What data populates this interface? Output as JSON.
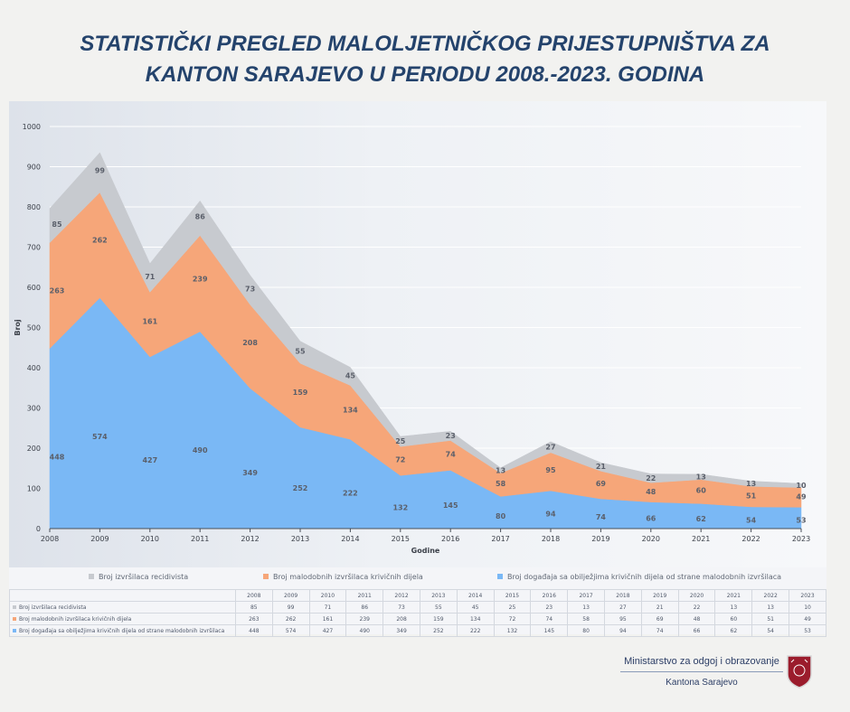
{
  "title_line1": "STATISTIČKI PREGLED MALOLJETNIČKOG PRIJESTUPNIŠTVA ZA",
  "title_line2": "KANTON SARAJEVO U PERIODU 2008.-2023. GODINA",
  "chart_data": {
    "type": "area",
    "stacked": true,
    "xlabel": "Godine",
    "ylabel": "Broj",
    "ylim": [
      0,
      1000
    ],
    "yticks": [
      0,
      100,
      200,
      300,
      400,
      500,
      600,
      700,
      800,
      900,
      1000
    ],
    "x": [
      "2008",
      "2009",
      "2010",
      "2011",
      "2012",
      "2013",
      "2014",
      "2015",
      "2016",
      "2017",
      "2018",
      "2019",
      "2020",
      "2021",
      "2022",
      "2023"
    ],
    "series": [
      {
        "name": "Broj događaja sa obilježjima krivičnih dijela od strane malodobnih izvršilaca",
        "color": "#7ab8f5",
        "values": [
          448,
          574,
          427,
          490,
          349,
          252,
          222,
          132,
          145,
          80,
          94,
          74,
          66,
          62,
          54,
          53
        ]
      },
      {
        "name": "Broj malodobnih izvršilaca krivičnih dijela",
        "color": "#f6a679",
        "values": [
          263,
          262,
          161,
          239,
          208,
          159,
          134,
          72,
          74,
          58,
          95,
          69,
          48,
          60,
          51,
          49
        ]
      },
      {
        "name": "Broj izvršilaca recidivista",
        "color": "#c7cacf",
        "values": [
          85,
          99,
          71,
          86,
          73,
          55,
          45,
          25,
          23,
          13,
          27,
          21,
          22,
          13,
          13,
          10
        ]
      }
    ],
    "legend_position": "bottom",
    "legend_order": [
      2,
      1,
      0
    ],
    "grid": true
  },
  "table_rows": [
    {
      "label": "Broj izvršilaca recidivista",
      "series_index": 2
    },
    {
      "label": "Broj malodobnih izvršilaca krivičnih dijela",
      "series_index": 1
    },
    {
      "label": "Broj događaja sa obilježjima krivičnih dijela od strane malodobnih izvršilaca",
      "series_index": 0
    }
  ],
  "logo": {
    "ministry": "Ministarstvo za odgoj i obrazovanje",
    "canton": "Kantona Sarajevo",
    "crest_color": "#9b1c2c"
  }
}
